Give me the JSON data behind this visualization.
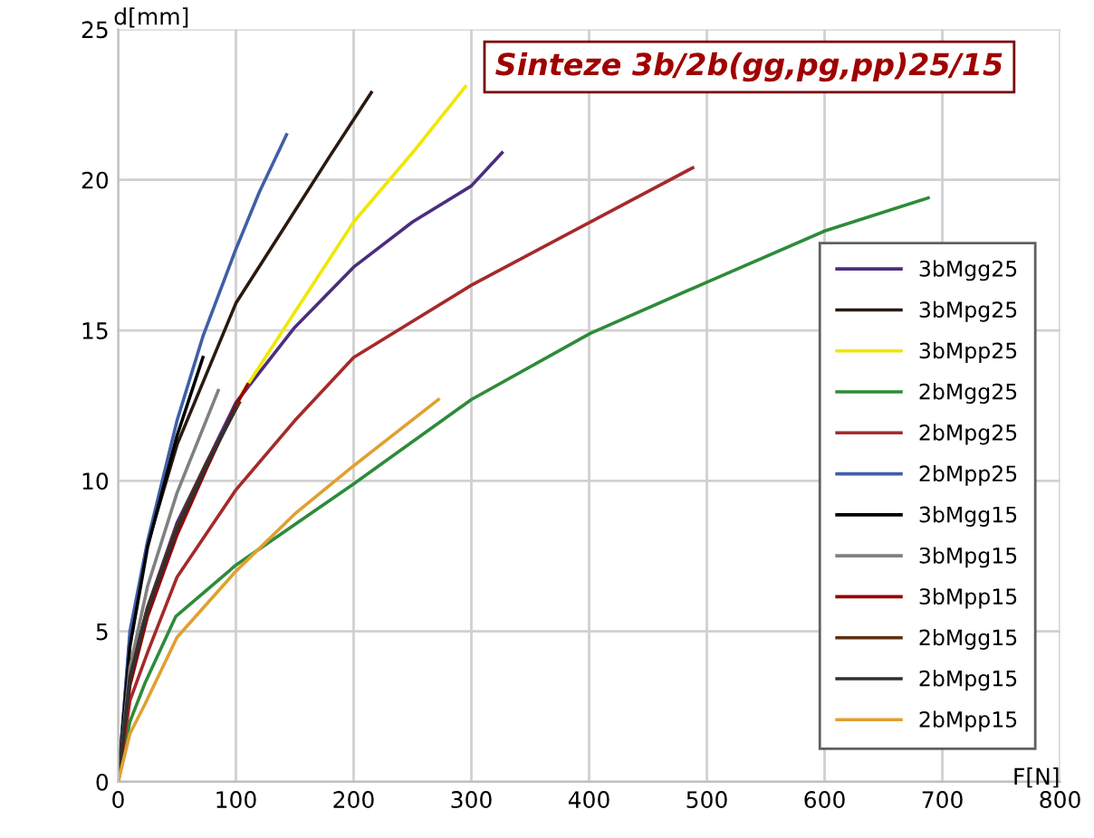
{
  "chart_data": {
    "type": "line",
    "title": "Sinteze 3b/2b(gg,pg,pp)25/15",
    "xlabel": "F[N]",
    "ylabel": "d[mm]",
    "xlim": [
      0,
      800
    ],
    "xticks": [
      0,
      100,
      200,
      300,
      400,
      500,
      600,
      700,
      800
    ],
    "ylim": [
      0,
      25
    ],
    "yticks": [
      0,
      5,
      10,
      15,
      20,
      25
    ],
    "grid": true,
    "legend": "right",
    "marker": "none",
    "line_style": "solid",
    "series": [
      {
        "name": "3bMgg25",
        "color": "#4b2d7f",
        "x": [
          0,
          10,
          25,
          50,
          100,
          150,
          200,
          250,
          300,
          326
        ],
        "values": [
          0,
          3.6,
          5.8,
          8.6,
          12.6,
          15.1,
          17.1,
          18.6,
          19.8,
          20.9
        ]
      },
      {
        "name": "3bMpg25",
        "color": "#2b1a10",
        "x": [
          0,
          10,
          25,
          50,
          100,
          149,
          180,
          215
        ],
        "values": [
          0,
          4.8,
          7.9,
          11.2,
          15.9,
          18.9,
          20.8,
          22.9
        ]
      },
      {
        "name": "3bMpp25",
        "color": "#f0e800",
        "x": [
          105,
          150,
          200,
          250,
          295
        ],
        "values": [
          12.9,
          15.6,
          18.6,
          20.9,
          23.1
        ]
      },
      {
        "name": "2bMgg25",
        "color": "#2e8b3a",
        "x": [
          0,
          10,
          23,
          49,
          100,
          200,
          300,
          401,
          500,
          600,
          688
        ],
        "values": [
          0,
          2.0,
          3.3,
          5.5,
          7.2,
          9.9,
          12.7,
          14.9,
          16.6,
          18.3,
          19.4
        ]
      },
      {
        "name": "2bMpg25",
        "color": "#a52a2a",
        "x": [
          0,
          10,
          25,
          50,
          100,
          150,
          200,
          300,
          401,
          488
        ],
        "values": [
          0,
          2.7,
          4.3,
          6.8,
          9.7,
          12.0,
          14.1,
          16.5,
          18.6,
          20.4
        ]
      },
      {
        "name": "2bMpp25",
        "color": "#3f5fa8",
        "x": [
          0,
          10,
          25,
          50,
          72,
          100,
          120,
          143
        ],
        "values": [
          0,
          5.0,
          8.0,
          12.0,
          14.8,
          17.7,
          19.6,
          21.5
        ]
      },
      {
        "name": "3bMgg15",
        "color": "#000000",
        "x": [
          0,
          10,
          25,
          50,
          72
        ],
        "values": [
          0,
          4.5,
          7.8,
          11.5,
          14.1
        ]
      },
      {
        "name": "3bMpg15",
        "color": "#808080",
        "x": [
          0,
          10,
          25,
          50,
          85
        ],
        "values": [
          0,
          3.8,
          6.5,
          9.6,
          13.0
        ]
      },
      {
        "name": "3bMpp15",
        "color": "#9b0000",
        "x": [
          0,
          10,
          25,
          50,
          75,
          100,
          110
        ],
        "values": [
          0,
          3.2,
          5.5,
          8.2,
          10.4,
          12.5,
          13.2
        ]
      },
      {
        "name": "2bMgg15",
        "color": "#5a3010",
        "x": [
          0,
          10,
          25,
          50,
          75,
          103
        ],
        "values": [
          0,
          3.5,
          5.8,
          8.5,
          10.6,
          12.6
        ]
      },
      {
        "name": "2bMpg15",
        "color": "#303030",
        "x": [
          0,
          10,
          25,
          50,
          75,
          100
        ],
        "values": [
          0,
          3.4,
          5.7,
          8.4,
          10.5,
          12.4
        ]
      },
      {
        "name": "2bMpp15",
        "color": "#e0a030",
        "x": [
          0,
          10,
          23,
          50,
          100,
          150,
          200,
          272
        ],
        "values": [
          0,
          1.6,
          2.6,
          4.8,
          7.0,
          8.9,
          10.5,
          12.7
        ]
      }
    ]
  }
}
